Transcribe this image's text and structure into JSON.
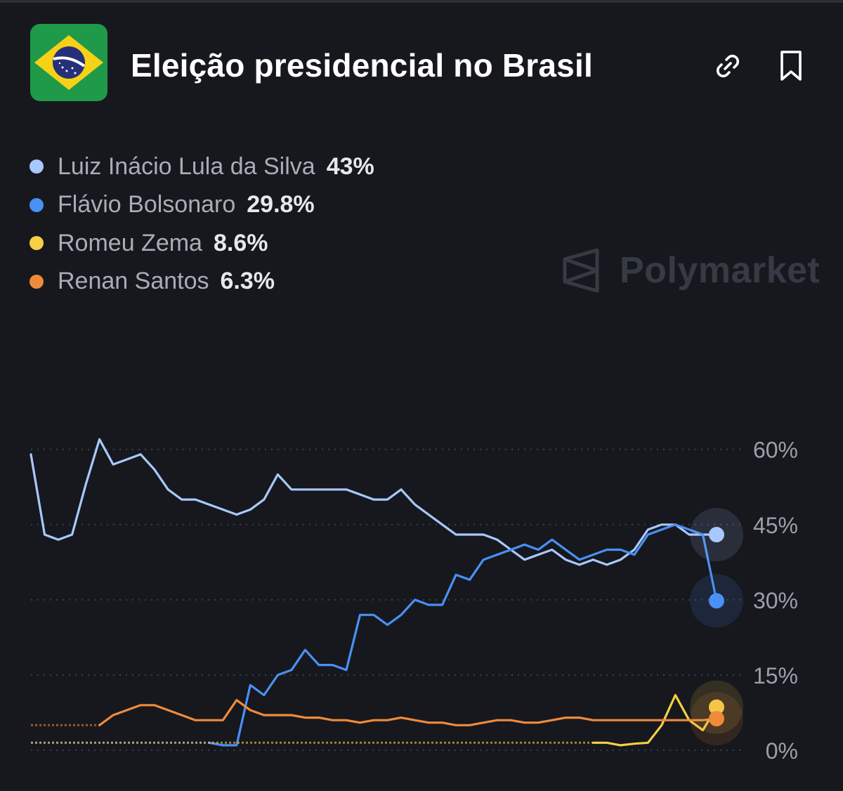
{
  "header": {
    "title": "Eleição presidencial no Brasil",
    "flag_icon": "brazil-flag-icon",
    "link_icon": "link-icon",
    "bookmark_icon": "bookmark-icon"
  },
  "watermark": {
    "text": "Polymarket",
    "icon": "polymarket-logo-icon"
  },
  "legend": [
    {
      "name": "Luiz Inácio Lula da Silva",
      "value": "43%",
      "color": "#a9c8ff"
    },
    {
      "name": "Flávio Bolsonaro",
      "value": "29.8%",
      "color": "#4a90f5"
    },
    {
      "name": "Romeu Zema",
      "value": "8.6%",
      "color": "#f6cf45"
    },
    {
      "name": "Renan Santos",
      "value": "6.3%",
      "color": "#f08a3b"
    }
  ],
  "chart_data": {
    "type": "line",
    "ylim": [
      0,
      65
    ],
    "y_ticks": [
      0,
      15,
      30,
      45,
      60
    ],
    "y_tick_labels": [
      "0%",
      "15%",
      "30%",
      "45%",
      "60%"
    ],
    "grid": true,
    "legend_position": "top-left",
    "x": [
      0,
      2,
      4,
      6,
      8,
      10,
      12,
      14,
      16,
      18,
      20,
      22,
      24,
      26,
      28,
      30,
      32,
      34,
      36,
      38,
      40,
      42,
      44,
      46,
      48,
      50,
      52,
      54,
      56,
      58,
      60,
      62,
      64,
      66,
      68,
      70,
      72,
      74,
      76,
      78,
      80,
      82,
      84,
      86,
      88,
      90,
      92,
      94,
      96,
      98,
      100
    ],
    "series": [
      {
        "name": "Luiz Inácio Lula da Silva",
        "color": "#a9c8ff",
        "values": [
          59,
          43,
          42,
          43,
          53,
          62,
          57,
          58,
          59,
          56,
          52,
          50,
          50,
          49,
          48,
          47,
          48,
          50,
          55,
          52,
          52,
          52,
          52,
          52,
          51,
          50,
          50,
          52,
          49,
          47,
          45,
          43,
          43,
          43,
          42,
          40,
          38,
          39,
          40,
          38,
          37,
          38,
          37,
          38,
          40,
          44,
          45,
          45,
          43,
          43,
          43
        ],
        "last_value": 43
      },
      {
        "name": "Flávio Bolsonaro",
        "color": "#4a90f5",
        "values": [
          null,
          null,
          null,
          null,
          null,
          null,
          null,
          null,
          null,
          null,
          null,
          null,
          null,
          1.5,
          1,
          1,
          13,
          11,
          15,
          16,
          20,
          17,
          17,
          16,
          27,
          27,
          25,
          27,
          30,
          29,
          29,
          35,
          34,
          38,
          39,
          40,
          41,
          40,
          42,
          40,
          38,
          39,
          40,
          40,
          39,
          43,
          44,
          45,
          44,
          43,
          29.8
        ],
        "last_value": 29.8
      },
      {
        "name": "Romeu Zema",
        "color": "#f6cf45",
        "values": [
          null,
          null,
          null,
          null,
          null,
          null,
          null,
          null,
          null,
          null,
          null,
          null,
          null,
          null,
          null,
          null,
          null,
          null,
          null,
          null,
          null,
          null,
          null,
          null,
          null,
          null,
          null,
          null,
          null,
          null,
          null,
          null,
          null,
          null,
          null,
          null,
          null,
          null,
          null,
          null,
          null,
          1.5,
          1.5,
          1,
          1.3,
          1.5,
          5,
          11,
          6,
          4,
          8.6
        ],
        "last_value": 8.6
      },
      {
        "name": "Renan Santos",
        "color": "#f08a3b",
        "values": [
          null,
          null,
          null,
          null,
          null,
          5,
          7,
          8,
          9,
          9,
          8,
          7,
          6,
          6,
          6,
          10,
          8,
          7,
          7,
          7,
          6.5,
          6.5,
          6,
          6,
          5.5,
          6,
          6,
          6.5,
          6,
          5.5,
          5.5,
          5,
          5,
          5.5,
          6,
          6,
          5.5,
          5.5,
          6,
          6.5,
          6.5,
          6,
          6,
          6,
          6,
          6,
          6,
          6,
          6,
          6,
          6.3
        ],
        "last_value": 6.3
      }
    ]
  }
}
